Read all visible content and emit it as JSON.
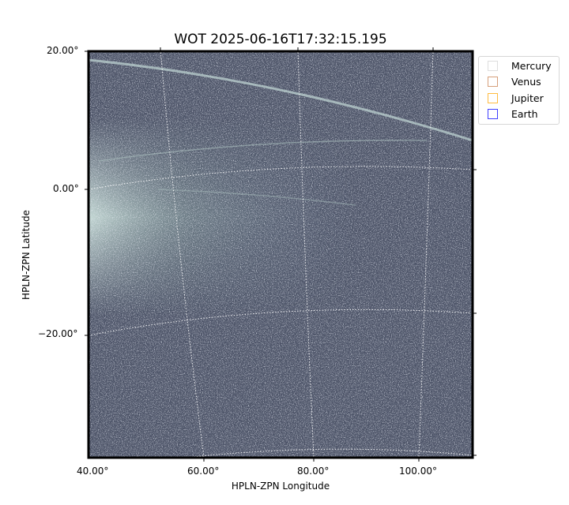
{
  "chart_data": {
    "type": "image",
    "title": "WOT 2025-06-16T17:32:15.195",
    "xlabel": "HPLN-ZPN Longitude",
    "ylabel": "HPLN-ZPN Latitude",
    "x_ticks": [
      "40.00°",
      "60.00°",
      "80.00°",
      "100.00°"
    ],
    "y_ticks": [
      "20.00°",
      "0.00°",
      "−20.00°"
    ],
    "colormap": "bone",
    "grid": true,
    "legend_position": "outside-top-right",
    "legend": [
      {
        "label": "Mercury",
        "color": "#d3d3d3"
      },
      {
        "label": "Venus",
        "color": "#c87f4f"
      },
      {
        "label": "Jupiter",
        "color": "#ffa500"
      },
      {
        "label": "Earth",
        "color": "#0000ff"
      }
    ]
  }
}
